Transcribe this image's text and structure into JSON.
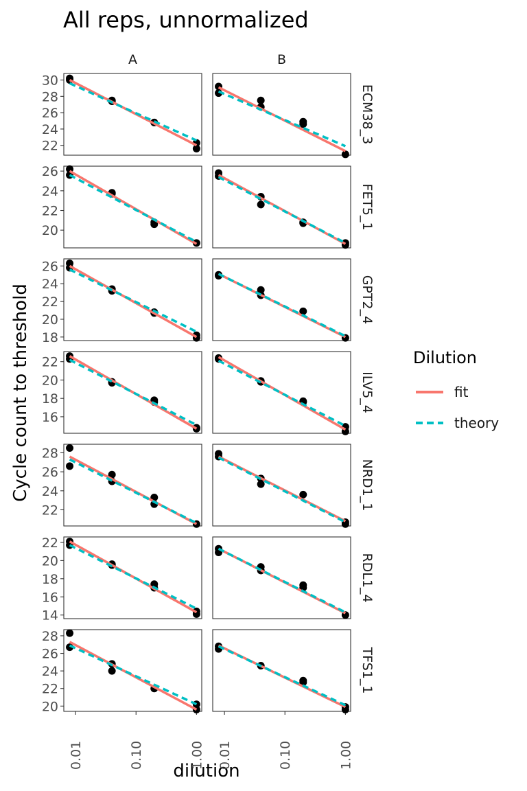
{
  "chart_data": {
    "type": "scatter",
    "title": "All reps, unnormalized",
    "xlabel": "dilution",
    "ylabel": "Cycle count to threshold",
    "x_scale": "log10",
    "xlim": [
      0.0064,
      1.22
    ],
    "x_ticks": [
      0.01,
      0.1,
      1.0
    ],
    "x_tick_labels": [
      "0.01",
      "0.10",
      "1.00"
    ],
    "grid": false,
    "legend": {
      "title": "Dilution",
      "position": "right",
      "entries": [
        {
          "label": "fit",
          "color": "#F8766D",
          "dash": "solid"
        },
        {
          "label": "theory",
          "color": "#00BFC4",
          "dash": "dashed"
        }
      ]
    },
    "columns": [
      "A",
      "B"
    ],
    "rows": [
      {
        "name": "ECM38_3",
        "ylim": [
          20.8,
          30.8
        ],
        "y_ticks": [
          22,
          24,
          26,
          28,
          30
        ]
      },
      {
        "name": "FET5_1",
        "ylim": [
          18.2,
          26.5
        ],
        "y_ticks": [
          20,
          22,
          24,
          26
        ]
      },
      {
        "name": "GPT2_4",
        "ylim": [
          17.6,
          26.8
        ],
        "y_ticks": [
          18,
          20,
          22,
          24,
          26
        ]
      },
      {
        "name": "ILV5_4",
        "ylim": [
          14.2,
          23.1
        ],
        "y_ticks": [
          14,
          16,
          18,
          20,
          22
        ]
      },
      {
        "name": "NRD1_1",
        "ylim": [
          20.3,
          28.9
        ],
        "y_ticks": [
          22,
          24,
          26,
          28
        ]
      },
      {
        "name": "RDL1_4",
        "ylim": [
          13.6,
          22.6
        ],
        "y_ticks": [
          14,
          16,
          18,
          20,
          22
        ]
      },
      {
        "name": "TFS1_1",
        "ylim": [
          19.4,
          28.7
        ],
        "y_ticks": [
          20,
          22,
          24,
          26,
          28
        ]
      }
    ],
    "panels": [
      {
        "row": "ECM38_3",
        "col": "A",
        "x": [
          0.008,
          0.008,
          0.04,
          0.04,
          0.2,
          0.2,
          1.0,
          1.0
        ],
        "y": [
          30.2,
          30.0,
          27.5,
          27.4,
          24.8,
          24.8,
          22.3,
          21.6
        ],
        "fit": [
          30.0,
          22.0
        ],
        "theory": [
          29.6,
          22.6
        ]
      },
      {
        "row": "ECM38_3",
        "col": "B",
        "x": [
          0.008,
          0.008,
          0.04,
          0.04,
          0.2,
          0.2,
          1.0
        ],
        "y": [
          29.2,
          28.4,
          27.5,
          26.7,
          24.9,
          24.6,
          20.9
        ],
        "fit": [
          29.1,
          21.3
        ],
        "theory": [
          28.6,
          21.9
        ]
      },
      {
        "row": "FET5_1",
        "col": "A",
        "x": [
          0.008,
          0.008,
          0.04,
          0.04,
          0.2,
          0.2,
          1.0
        ],
        "y": [
          26.2,
          25.6,
          23.8,
          23.7,
          20.8,
          20.6,
          18.7
        ],
        "fit": [
          26.0,
          18.6
        ],
        "theory": [
          25.6,
          18.8
        ]
      },
      {
        "row": "FET5_1",
        "col": "B",
        "x": [
          0.008,
          0.008,
          0.04,
          0.04,
          0.2,
          0.2,
          1.0,
          1.0
        ],
        "y": [
          25.8,
          25.5,
          23.4,
          22.6,
          20.8,
          20.7,
          18.7,
          18.5
        ],
        "fit": [
          25.6,
          18.6
        ],
        "theory": [
          25.4,
          18.7
        ]
      },
      {
        "row": "GPT2_4",
        "col": "A",
        "x": [
          0.008,
          0.008,
          0.04,
          0.04,
          0.2,
          0.2,
          1.0,
          1.0
        ],
        "y": [
          26.3,
          25.8,
          23.4,
          23.2,
          20.8,
          20.7,
          18.2,
          17.9
        ],
        "fit": [
          26.0,
          18.0
        ],
        "theory": [
          25.6,
          18.6
        ]
      },
      {
        "row": "GPT2_4",
        "col": "B",
        "x": [
          0.008,
          0.008,
          0.04,
          0.04,
          0.2,
          1.0
        ],
        "y": [
          25.0,
          24.9,
          23.3,
          22.7,
          20.9,
          17.9
        ],
        "fit": [
          25.1,
          18.0
        ],
        "theory": [
          25.1,
          18.1
        ]
      },
      {
        "row": "ILV5_4",
        "col": "A",
        "x": [
          0.008,
          0.008,
          0.04,
          0.04,
          0.2,
          0.2,
          1.0,
          1.0
        ],
        "y": [
          22.6,
          22.3,
          19.8,
          19.7,
          17.8,
          17.6,
          14.8,
          14.7
        ],
        "fit": [
          22.6,
          14.7
        ],
        "theory": [
          22.2,
          15.1
        ]
      },
      {
        "row": "ILV5_4",
        "col": "B",
        "x": [
          0.008,
          0.008,
          0.04,
          0.04,
          0.2,
          0.2,
          1.0,
          1.0
        ],
        "y": [
          22.4,
          22.3,
          19.9,
          19.8,
          17.7,
          17.6,
          14.9,
          14.4
        ],
        "fit": [
          22.5,
          14.6
        ],
        "theory": [
          22.1,
          15.0
        ]
      },
      {
        "row": "NRD1_1",
        "col": "A",
        "x": [
          0.008,
          0.008,
          0.04,
          0.04,
          0.2,
          0.2,
          1.0
        ],
        "y": [
          28.5,
          26.6,
          25.7,
          25.0,
          23.3,
          22.6,
          20.5
        ],
        "fit": [
          27.6,
          20.5
        ],
        "theory": [
          27.3,
          20.6
        ]
      },
      {
        "row": "NRD1_1",
        "col": "B",
        "x": [
          0.008,
          0.008,
          0.04,
          0.04,
          0.2,
          1.0,
          1.0
        ],
        "y": [
          27.9,
          27.6,
          25.3,
          24.7,
          23.6,
          20.7,
          20.5
        ],
        "fit": [
          27.6,
          20.8
        ],
        "theory": [
          27.5,
          20.7
        ]
      },
      {
        "row": "RDL1_4",
        "col": "A",
        "x": [
          0.008,
          0.008,
          0.04,
          0.04,
          0.2,
          0.2,
          1.0,
          1.0
        ],
        "y": [
          22.1,
          21.7,
          19.6,
          19.5,
          17.4,
          17.0,
          14.4,
          14.1
        ],
        "fit": [
          22.1,
          14.3
        ],
        "theory": [
          21.7,
          14.7
        ]
      },
      {
        "row": "RDL1_4",
        "col": "B",
        "x": [
          0.008,
          0.008,
          0.04,
          0.04,
          0.2,
          0.2,
          1.0
        ],
        "y": [
          21.3,
          20.9,
          19.3,
          18.9,
          17.3,
          17.0,
          14.0
        ],
        "fit": [
          21.3,
          14.2
        ],
        "theory": [
          21.3,
          14.3
        ]
      },
      {
        "row": "TFS1_1",
        "col": "A",
        "x": [
          0.008,
          0.008,
          0.04,
          0.04,
          0.2,
          1.0,
          1.0
        ],
        "y": [
          28.3,
          26.7,
          24.8,
          24.0,
          22.0,
          20.2,
          19.6
        ],
        "fit": [
          27.3,
          19.6
        ],
        "theory": [
          26.9,
          20.2
        ]
      },
      {
        "row": "TFS1_1",
        "col": "B",
        "x": [
          0.008,
          0.008,
          0.04,
          0.2,
          0.2,
          1.0,
          1.0
        ],
        "y": [
          26.8,
          26.5,
          24.6,
          22.9,
          22.7,
          19.9,
          19.6
        ],
        "fit": [
          26.9,
          19.9
        ],
        "theory": [
          26.8,
          20.1
        ]
      }
    ]
  }
}
